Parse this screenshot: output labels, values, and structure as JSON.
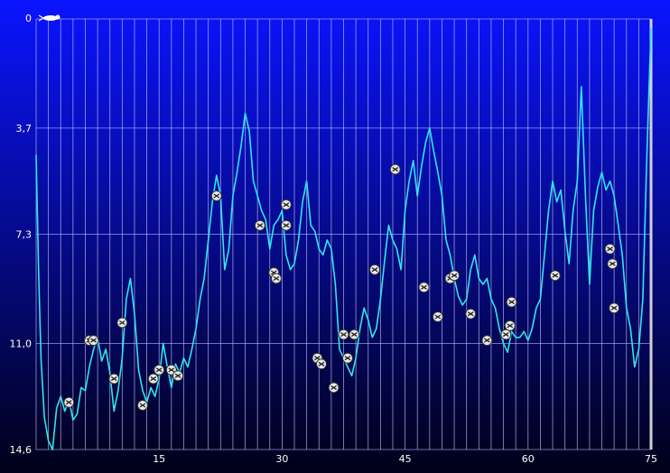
{
  "chart_data": {
    "type": "line",
    "title": "",
    "xlabel": "",
    "ylabel": "",
    "xlim": [
      0,
      75
    ],
    "ylim": [
      0,
      14.6
    ],
    "y_inverted": true,
    "grid": true,
    "x_ticks": [
      15,
      30,
      45,
      60,
      75
    ],
    "y_ticks": [
      0,
      3.7,
      7.3,
      11.0,
      14.6
    ],
    "y_tick_labels": [
      "0",
      "3,7",
      "7,3",
      "11,0",
      "14,6"
    ],
    "x_tick_labels": [
      "15",
      "30",
      "45",
      "60",
      "75"
    ],
    "colors": {
      "background_top": "#0a14ff",
      "background_bottom": "#000018",
      "line": "#2ee6f0",
      "grid": "#c8c8ff",
      "marker": "#e8e8e8"
    },
    "series": [
      {
        "values": [
          [
            0.0,
            4.6
          ],
          [
            0.3,
            8.5
          ],
          [
            0.6,
            11.5
          ],
          [
            1.0,
            13.5
          ],
          [
            1.5,
            14.3
          ],
          [
            2.0,
            14.6
          ],
          [
            2.5,
            13.2
          ],
          [
            3.0,
            12.8
          ],
          [
            3.5,
            13.3
          ],
          [
            4.0,
            12.9
          ],
          [
            4.5,
            13.6
          ],
          [
            5.0,
            13.4
          ],
          [
            5.5,
            12.5
          ],
          [
            6.0,
            12.6
          ],
          [
            6.5,
            11.8
          ],
          [
            7.0,
            11.2
          ],
          [
            7.5,
            10.8
          ],
          [
            8.0,
            11.6
          ],
          [
            8.5,
            11.2
          ],
          [
            9.0,
            12.0
          ],
          [
            9.5,
            13.3
          ],
          [
            10.0,
            12.6
          ],
          [
            10.5,
            11.5
          ],
          [
            11.0,
            9.5
          ],
          [
            11.5,
            8.8
          ],
          [
            12.0,
            10.0
          ],
          [
            12.5,
            11.9
          ],
          [
            13.0,
            12.6
          ],
          [
            13.5,
            13.0
          ],
          [
            14.0,
            12.5
          ],
          [
            14.5,
            12.8
          ],
          [
            15.0,
            12.2
          ],
          [
            15.5,
            11.0
          ],
          [
            16.0,
            11.8
          ],
          [
            16.5,
            12.5
          ],
          [
            17.0,
            11.7
          ],
          [
            17.5,
            12.0
          ],
          [
            18.0,
            11.5
          ],
          [
            18.5,
            11.8
          ],
          [
            19.0,
            11.2
          ],
          [
            19.5,
            10.5
          ],
          [
            20.0,
            9.5
          ],
          [
            20.5,
            8.8
          ],
          [
            21.0,
            7.5
          ],
          [
            21.5,
            6.2
          ],
          [
            22.0,
            5.3
          ],
          [
            22.5,
            6.0
          ],
          [
            23.0,
            8.5
          ],
          [
            23.5,
            7.8
          ],
          [
            24.0,
            6.0
          ],
          [
            24.5,
            5.2
          ],
          [
            25.0,
            4.3
          ],
          [
            25.5,
            3.2
          ],
          [
            26.0,
            3.8
          ],
          [
            26.5,
            5.5
          ],
          [
            27.0,
            6.0
          ],
          [
            27.5,
            6.5
          ],
          [
            28.0,
            6.8
          ],
          [
            28.5,
            7.8
          ],
          [
            29.0,
            7.0
          ],
          [
            29.5,
            6.8
          ],
          [
            30.0,
            6.5
          ],
          [
            30.5,
            8.0
          ],
          [
            31.0,
            8.5
          ],
          [
            31.5,
            8.3
          ],
          [
            32.0,
            7.5
          ],
          [
            32.5,
            6.2
          ],
          [
            33.0,
            5.5
          ],
          [
            33.5,
            7.0
          ],
          [
            34.0,
            7.2
          ],
          [
            34.5,
            7.8
          ],
          [
            35.0,
            8.0
          ],
          [
            35.5,
            7.5
          ],
          [
            36.0,
            7.8
          ],
          [
            36.5,
            9.0
          ],
          [
            37.0,
            11.2
          ],
          [
            37.5,
            11.5
          ],
          [
            38.0,
            11.8
          ],
          [
            38.5,
            12.1
          ],
          [
            39.0,
            11.5
          ],
          [
            39.5,
            10.5
          ],
          [
            40.0,
            9.8
          ],
          [
            40.5,
            10.2
          ],
          [
            41.0,
            10.8
          ],
          [
            41.5,
            10.5
          ],
          [
            42.0,
            9.5
          ],
          [
            42.5,
            8.2
          ],
          [
            43.0,
            7.0
          ],
          [
            43.5,
            7.5
          ],
          [
            44.0,
            7.8
          ],
          [
            44.5,
            8.5
          ],
          [
            45.0,
            6.5
          ],
          [
            45.5,
            5.5
          ],
          [
            46.0,
            4.8
          ],
          [
            46.5,
            6.0
          ],
          [
            47.0,
            5.0
          ],
          [
            47.5,
            4.2
          ],
          [
            48.0,
            3.7
          ],
          [
            48.5,
            4.5
          ],
          [
            49.0,
            5.2
          ],
          [
            49.5,
            6.0
          ],
          [
            50.0,
            7.5
          ],
          [
            50.5,
            8.0
          ],
          [
            51.0,
            8.8
          ],
          [
            51.5,
            9.4
          ],
          [
            52.0,
            9.7
          ],
          [
            52.5,
            9.5
          ],
          [
            53.0,
            8.5
          ],
          [
            53.5,
            8.0
          ],
          [
            54.0,
            8.8
          ],
          [
            54.5,
            9.0
          ],
          [
            55.0,
            8.8
          ],
          [
            55.5,
            9.5
          ],
          [
            56.0,
            9.8
          ],
          [
            56.5,
            10.5
          ],
          [
            57.0,
            11.0
          ],
          [
            57.5,
            11.3
          ],
          [
            58.0,
            10.6
          ],
          [
            58.5,
            10.8
          ],
          [
            59.0,
            10.8
          ],
          [
            59.5,
            10.6
          ],
          [
            60.0,
            10.9
          ],
          [
            60.5,
            10.5
          ],
          [
            61.0,
            9.8
          ],
          [
            61.5,
            9.5
          ],
          [
            62.0,
            8.0
          ],
          [
            62.5,
            6.5
          ],
          [
            63.0,
            5.5
          ],
          [
            63.5,
            6.2
          ],
          [
            64.0,
            5.8
          ],
          [
            64.5,
            7.2
          ],
          [
            65.0,
            8.3
          ],
          [
            65.5,
            6.5
          ],
          [
            66.0,
            5.5
          ],
          [
            66.5,
            2.3
          ],
          [
            67.0,
            6.0
          ],
          [
            67.5,
            9.0
          ],
          [
            68.0,
            6.5
          ],
          [
            68.5,
            5.7
          ],
          [
            69.0,
            5.2
          ],
          [
            69.5,
            5.8
          ],
          [
            70.0,
            5.5
          ],
          [
            70.5,
            6.0
          ],
          [
            71.0,
            7.0
          ],
          [
            71.5,
            8.0
          ],
          [
            72.0,
            9.8
          ],
          [
            72.5,
            10.5
          ],
          [
            73.0,
            11.8
          ],
          [
            73.5,
            11.2
          ],
          [
            74.0,
            9.5
          ],
          [
            74.5,
            4.5
          ],
          [
            75.0,
            0.3
          ]
        ]
      }
    ],
    "markers": [
      [
        4.0,
        13.0
      ],
      [
        6.5,
        10.9
      ],
      [
        7.0,
        10.9
      ],
      [
        9.5,
        12.2
      ],
      [
        10.5,
        10.3
      ],
      [
        13.0,
        13.1
      ],
      [
        14.3,
        12.2
      ],
      [
        15.0,
        11.9
      ],
      [
        16.5,
        11.9
      ],
      [
        17.3,
        12.1
      ],
      [
        22.0,
        6.0
      ],
      [
        27.3,
        7.0
      ],
      [
        29.0,
        8.6
      ],
      [
        29.3,
        8.8
      ],
      [
        30.5,
        6.3
      ],
      [
        30.5,
        7.0
      ],
      [
        34.3,
        11.5
      ],
      [
        34.8,
        11.7
      ],
      [
        36.3,
        12.5
      ],
      [
        37.5,
        10.7
      ],
      [
        38.0,
        11.5
      ],
      [
        38.8,
        10.7
      ],
      [
        41.3,
        8.5
      ],
      [
        43.8,
        5.1
      ],
      [
        47.3,
        9.1
      ],
      [
        49.0,
        10.1
      ],
      [
        50.5,
        8.8
      ],
      [
        51.0,
        8.7
      ],
      [
        53.0,
        10.0
      ],
      [
        55.0,
        10.9
      ],
      [
        57.3,
        10.7
      ],
      [
        57.8,
        10.4
      ],
      [
        58.0,
        9.6
      ],
      [
        63.3,
        8.7
      ],
      [
        70.0,
        7.8
      ],
      [
        70.3,
        8.3
      ],
      [
        70.5,
        9.8
      ]
    ]
  }
}
